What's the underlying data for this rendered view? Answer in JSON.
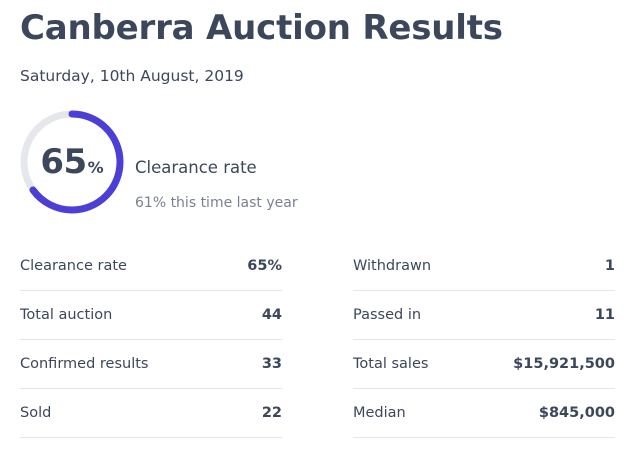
{
  "header": {
    "title": "Canberra Auction Results",
    "date": "Saturday, 10th August, 2019"
  },
  "summary": {
    "clearance_value": "65",
    "clearance_unit": "%",
    "clearance_fraction": 0.65,
    "clearance_label": "Clearance rate",
    "last_year_text": "61% this time last year",
    "gauge_color": "#4b3fd6",
    "gauge_track_color": "#e6e7eb"
  },
  "stats_left": [
    {
      "label": "Clearance rate",
      "value": "65%"
    },
    {
      "label": "Total auction",
      "value": "44"
    },
    {
      "label": "Confirmed results",
      "value": "33"
    },
    {
      "label": "Sold",
      "value": "22"
    }
  ],
  "stats_right": [
    {
      "label": "Withdrawn",
      "value": "1"
    },
    {
      "label": "Passed in",
      "value": "11"
    },
    {
      "label": "Total sales",
      "value": "$15,921,500"
    },
    {
      "label": "Median",
      "value": "$845,000"
    }
  ]
}
